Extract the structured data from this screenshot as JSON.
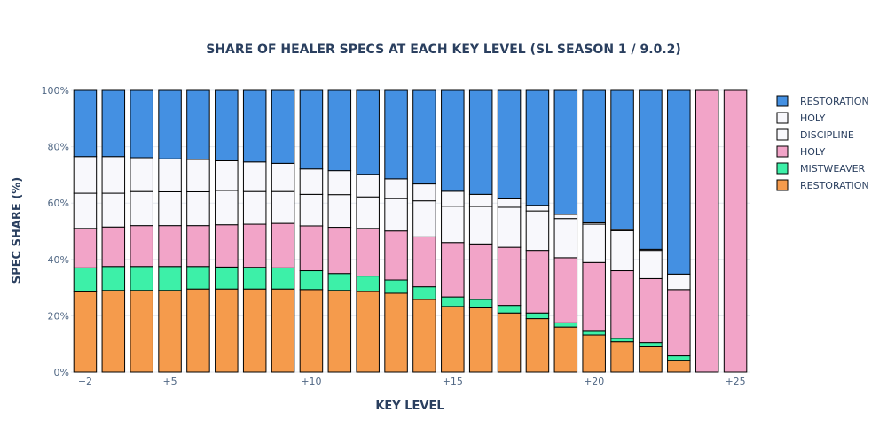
{
  "chart_data": {
    "type": "bar",
    "stacked": true,
    "title": "SHARE OF HEALER SPECS AT EACH KEY LEVEL (SL SEASON 1 / 9.0.2)",
    "xlabel": "KEY LEVEL",
    "ylabel": "SPEC SHARE (%)",
    "ylim": [
      0,
      100
    ],
    "y_ticks": [
      "0%",
      "20%",
      "40%",
      "60%",
      "80%",
      "100%"
    ],
    "y_tick_values": [
      0,
      20,
      40,
      60,
      80,
      100
    ],
    "x_ticks": [
      "+2",
      "+5",
      "+10",
      "+15",
      "+20",
      "+25"
    ],
    "x_tick_values": [
      2,
      5,
      10,
      15,
      20,
      25
    ],
    "grid": true,
    "legend_position": "top-right",
    "x": [
      2,
      3,
      4,
      5,
      6,
      7,
      8,
      9,
      10,
      11,
      12,
      13,
      14,
      15,
      16,
      17,
      18,
      19,
      20,
      21,
      22,
      23,
      24,
      25
    ],
    "series": [
      {
        "name": "RESTORATION",
        "color": "#f59b4c",
        "values": [
          28.5,
          29,
          29,
          29,
          29.5,
          29.5,
          29.5,
          29.5,
          29.3,
          29,
          28.6,
          28,
          25.8,
          23.3,
          22.8,
          21,
          19,
          16,
          13.2,
          10.8,
          9,
          4.2,
          0,
          0
        ]
      },
      {
        "name": "MISTWEAVER",
        "color": "#3df0a8",
        "values": [
          8.5,
          8.5,
          8.5,
          8.5,
          8,
          7.8,
          7.7,
          7.5,
          6.7,
          6,
          5.5,
          4.7,
          4.5,
          3.4,
          3,
          2.7,
          2,
          1.5,
          1.3,
          1.2,
          1.5,
          1.6,
          0,
          0
        ]
      },
      {
        "name": "HOLY",
        "color": "#f2a4c8",
        "values": [
          14,
          14,
          14.5,
          14.5,
          14.5,
          15,
          15.3,
          15.8,
          15.9,
          16.4,
          16.9,
          17.4,
          17.7,
          19.3,
          19.7,
          20.6,
          22.2,
          23.1,
          24.4,
          24,
          22.7,
          23.5,
          100,
          100
        ]
      },
      {
        "name": "DISCIPLINE",
        "color": "#f8f8fc",
        "values": [
          12.5,
          12,
          12.1,
          12,
          12,
          12.2,
          11.6,
          11.3,
          11.2,
          11.6,
          11.2,
          11.5,
          12.8,
          12.9,
          13.3,
          14.2,
          14,
          13.9,
          13.6,
          14.2,
          10,
          5.5,
          0,
          0
        ]
      },
      {
        "name": "HOLY",
        "color": "#f8f8fc",
        "values": [
          13,
          13,
          12,
          11.7,
          11.5,
          10.5,
          10.5,
          10,
          9,
          8.5,
          8,
          7,
          6,
          5.3,
          4.3,
          3,
          2,
          1.5,
          0.5,
          0.4,
          0.4,
          0,
          0,
          0
        ]
      },
      {
        "name": "RESTORATION",
        "color": "#4490e2",
        "values": [
          23.5,
          23.5,
          23.9,
          24.3,
          24.5,
          25,
          25.4,
          25.9,
          27.9,
          28.5,
          29.8,
          31.4,
          33.2,
          35.8,
          36.9,
          38.5,
          40.8,
          44,
          47,
          49.4,
          56.4,
          65.2,
          0,
          0
        ]
      }
    ]
  }
}
